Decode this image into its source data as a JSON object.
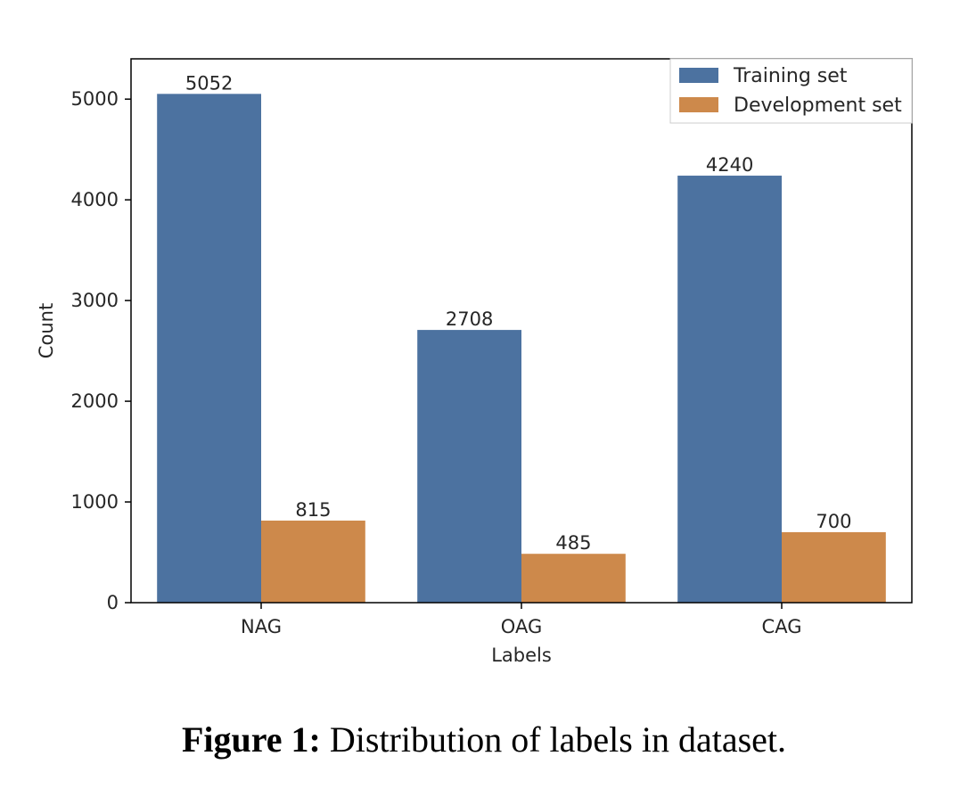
{
  "chart_data": {
    "type": "bar",
    "categories": [
      "NAG",
      "OAG",
      "CAG"
    ],
    "series": [
      {
        "name": "Training set",
        "values": [
          5052,
          2708,
          4240
        ],
        "color": "#4c72a0"
      },
      {
        "name": "Development set",
        "values": [
          815,
          485,
          700
        ],
        "color": "#cd894b"
      }
    ],
    "data_labels": [
      [
        "5052",
        "2708",
        "4240"
      ],
      [
        "815",
        "485",
        "700"
      ]
    ],
    "xlabel": "Labels",
    "ylabel": "Count",
    "ylim": [
      0,
      5400
    ],
    "yticks": [
      0,
      1000,
      2000,
      3000,
      4000,
      5000
    ],
    "ytick_labels": [
      "0",
      "1000",
      "2000",
      "3000",
      "4000",
      "5000"
    ],
    "grid": false,
    "legend_position": "top-right"
  },
  "caption": {
    "label": "Figure 1:",
    "text": "Distribution of labels in dataset."
  }
}
